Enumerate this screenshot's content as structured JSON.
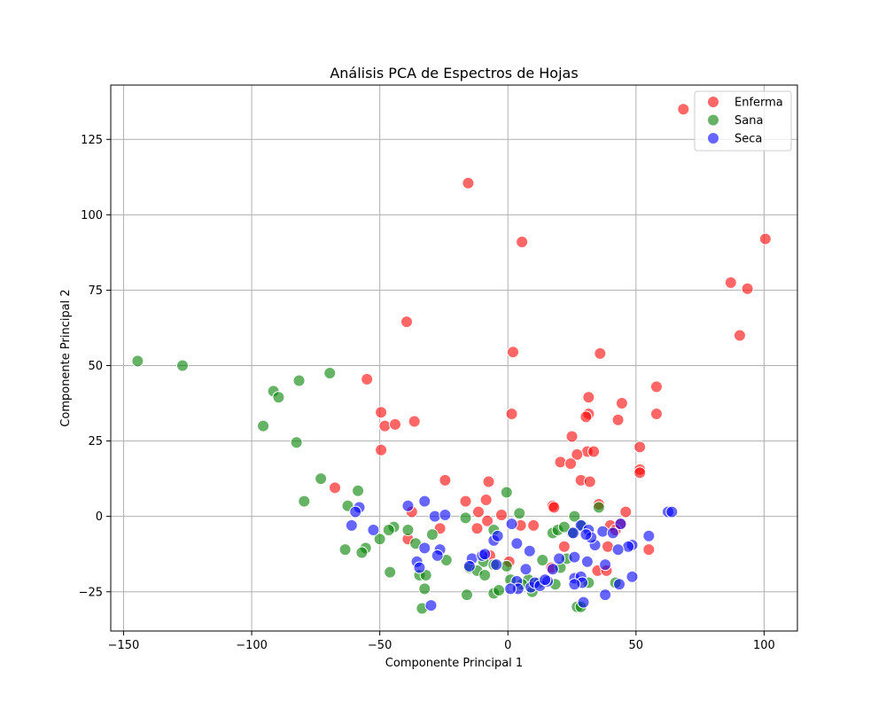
{
  "chart_data": {
    "type": "scatter",
    "title": "Análisis PCA de Espectros de Hojas",
    "xlabel": "Componente Principal 1",
    "ylabel": "Componente Principal 2",
    "xlim": [
      -155,
      113
    ],
    "ylim": [
      -38,
      143
    ],
    "xticks": [
      -150,
      -100,
      -50,
      0,
      50,
      100
    ],
    "yticks": [
      -25,
      0,
      25,
      50,
      75,
      100,
      125
    ],
    "xtick_labels": [
      "−150",
      "−100",
      "−50",
      "0",
      "50",
      "100"
    ],
    "ytick_labels": [
      "−25",
      "0",
      "25",
      "50",
      "75",
      "100",
      "125"
    ],
    "grid": true,
    "legend_position": "top-right",
    "series": [
      {
        "name": "Enferma",
        "color": "#ff0000",
        "points": [
          [
            68.5,
            135
          ],
          [
            -15.5,
            110.5
          ],
          [
            5.5,
            91
          ],
          [
            100.5,
            92
          ],
          [
            87,
            77.5
          ],
          [
            93.5,
            75.5
          ],
          [
            90.5,
            60
          ],
          [
            -39.5,
            64.5
          ],
          [
            2,
            54.5
          ],
          [
            36,
            54
          ],
          [
            -55,
            45.5
          ],
          [
            58,
            43
          ],
          [
            31.5,
            39.5
          ],
          [
            44.5,
            37.5
          ],
          [
            -49.5,
            34.5
          ],
          [
            1.5,
            34
          ],
          [
            31.5,
            34
          ],
          [
            30.5,
            33
          ],
          [
            58,
            34
          ],
          [
            -36.5,
            31.5
          ],
          [
            -48,
            30
          ],
          [
            -44,
            30.5
          ],
          [
            43,
            32
          ],
          [
            25,
            26.5
          ],
          [
            51.5,
            23
          ],
          [
            -49.5,
            22
          ],
          [
            31,
            21.5
          ],
          [
            33.5,
            21.5
          ],
          [
            27,
            20.5
          ],
          [
            20.5,
            18
          ],
          [
            24.5,
            17.5
          ],
          [
            51.5,
            15.5
          ],
          [
            51.5,
            14.5
          ],
          [
            28.5,
            12
          ],
          [
            32,
            11.5
          ],
          [
            -24.5,
            12
          ],
          [
            -7.5,
            11.5
          ],
          [
            -67.5,
            9.5
          ],
          [
            -16.5,
            5
          ],
          [
            -8.5,
            5.5
          ],
          [
            17.5,
            3.5
          ],
          [
            18,
            3
          ],
          [
            35.5,
            4
          ],
          [
            -37.5,
            1.5
          ],
          [
            -11.5,
            1.5
          ],
          [
            -2.5,
            0.5
          ],
          [
            46,
            1.5
          ],
          [
            -8,
            -1.5
          ],
          [
            5,
            -3
          ],
          [
            10,
            -3
          ],
          [
            40,
            -3
          ],
          [
            44,
            -2.5
          ],
          [
            -12,
            -4
          ],
          [
            -26.5,
            -4
          ],
          [
            42,
            -4.5
          ],
          [
            -39,
            -7.5
          ],
          [
            55,
            -11
          ],
          [
            0.5,
            -15
          ],
          [
            17,
            -17
          ],
          [
            35,
            -18
          ],
          [
            38.5,
            -18
          ],
          [
            -7,
            -13
          ],
          [
            22,
            -10
          ],
          [
            39,
            -10
          ]
        ]
      },
      {
        "name": "Sana",
        "color": "#008000",
        "points": [
          [
            -144.5,
            51.5
          ],
          [
            -127,
            50
          ],
          [
            -69.5,
            47.5
          ],
          [
            -81.5,
            45
          ],
          [
            -91.5,
            41.5
          ],
          [
            -89.5,
            39.5
          ],
          [
            -95.5,
            30
          ],
          [
            -82.5,
            24.5
          ],
          [
            -73,
            12.5
          ],
          [
            -58.5,
            8.5
          ],
          [
            -0.5,
            8
          ],
          [
            -79.5,
            5
          ],
          [
            -62.5,
            3.5
          ],
          [
            4.5,
            1
          ],
          [
            35.5,
            3
          ],
          [
            26,
            0
          ],
          [
            -16.5,
            -0.5
          ],
          [
            -44.5,
            -3.5
          ],
          [
            -46.5,
            -4.5
          ],
          [
            -39,
            -4.5
          ],
          [
            -50,
            -7.5
          ],
          [
            -36,
            -9
          ],
          [
            -29.5,
            -6
          ],
          [
            -55.5,
            -10.5
          ],
          [
            -63.5,
            -11
          ],
          [
            -57,
            -12
          ],
          [
            -46,
            -18.5
          ],
          [
            -34.5,
            -19.5
          ],
          [
            -32,
            -19.5
          ],
          [
            -24,
            -14.5
          ],
          [
            -9.5,
            -15
          ],
          [
            -15,
            -17
          ],
          [
            -12,
            -18
          ],
          [
            -9,
            -19.5
          ],
          [
            -5.5,
            -16
          ],
          [
            -5.5,
            -4.5
          ],
          [
            -0.5,
            -16.5
          ],
          [
            1,
            -21
          ],
          [
            8,
            -21
          ],
          [
            13.5,
            -14.5
          ],
          [
            17.5,
            -5.5
          ],
          [
            19.5,
            -4.5
          ],
          [
            25,
            -5.5
          ],
          [
            22,
            -3.5
          ],
          [
            29,
            -3
          ],
          [
            -32.5,
            -24
          ],
          [
            -33.5,
            -30.5
          ],
          [
            -16,
            -26
          ],
          [
            -5.5,
            -25.5
          ],
          [
            -3.5,
            -24.5
          ],
          [
            5.5,
            -22.5
          ],
          [
            9.5,
            -25
          ],
          [
            12,
            -22
          ],
          [
            18.5,
            -22.5
          ],
          [
            20.5,
            -17
          ],
          [
            23,
            -14
          ],
          [
            27,
            -30
          ],
          [
            28.5,
            -30
          ],
          [
            31.5,
            -22
          ],
          [
            42,
            -22
          ]
        ]
      },
      {
        "name": "Seca",
        "color": "#0000ff",
        "points": [
          [
            -39,
            3.5
          ],
          [
            -32.5,
            5
          ],
          [
            -58,
            3
          ],
          [
            -59.5,
            1.5
          ],
          [
            -28.5,
            0
          ],
          [
            -24.5,
            0.5
          ],
          [
            -61,
            -3
          ],
          [
            -52.5,
            -4.5
          ],
          [
            1.5,
            -2.5
          ],
          [
            28.5,
            -3
          ],
          [
            31.5,
            -4.5
          ],
          [
            25.5,
            -5.5
          ],
          [
            37,
            -5
          ],
          [
            44,
            -2.5
          ],
          [
            41,
            -5.5
          ],
          [
            62.5,
            1.5
          ],
          [
            64,
            1.5
          ],
          [
            55,
            -6.5
          ],
          [
            48.5,
            -9.5
          ],
          [
            47,
            -10
          ],
          [
            43,
            -11
          ],
          [
            34,
            -9.5
          ],
          [
            32.5,
            -7
          ],
          [
            30.5,
            -6
          ],
          [
            -32.5,
            -10.5
          ],
          [
            -26.5,
            -11
          ],
          [
            -27.5,
            -13
          ],
          [
            -35.5,
            -15
          ],
          [
            -14,
            -14
          ],
          [
            -10,
            -13
          ],
          [
            -9,
            -12.5
          ],
          [
            -5.5,
            -8
          ],
          [
            -4,
            -6.5
          ],
          [
            3.5,
            -9
          ],
          [
            8.5,
            -11.5
          ],
          [
            20,
            -14
          ],
          [
            26,
            -13.5
          ],
          [
            31,
            -15
          ],
          [
            38,
            -16
          ],
          [
            -34.5,
            -17
          ],
          [
            -15,
            -16.5
          ],
          [
            -4.5,
            -16
          ],
          [
            7,
            -17.5
          ],
          [
            17.5,
            -17.5
          ],
          [
            26,
            -20.5
          ],
          [
            28.5,
            -20
          ],
          [
            29,
            -22
          ],
          [
            26,
            -22.5
          ],
          [
            29.5,
            -28.5
          ],
          [
            38,
            -26
          ],
          [
            43.5,
            -22.5
          ],
          [
            48.5,
            -20
          ],
          [
            3.5,
            -21.5
          ],
          [
            4,
            -24
          ],
          [
            1,
            -24
          ],
          [
            9,
            -23.5
          ],
          [
            10.5,
            -22
          ],
          [
            12.5,
            -23
          ],
          [
            15.5,
            -21.5
          ],
          [
            14.5,
            -21
          ],
          [
            -30,
            -29.5
          ]
        ]
      }
    ]
  }
}
